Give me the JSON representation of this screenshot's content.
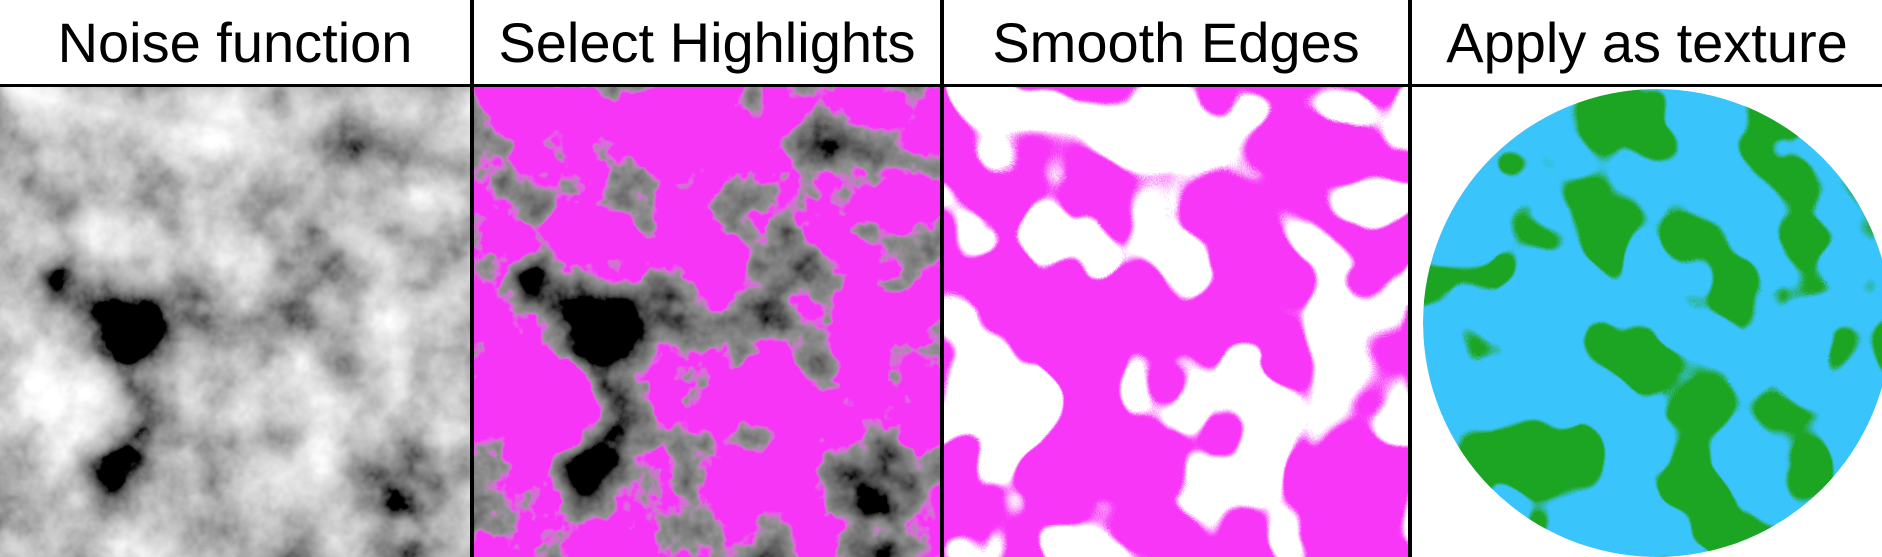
{
  "panels": [
    {
      "title": "Noise function"
    },
    {
      "title": "Select Highlights"
    },
    {
      "title": "Smooth Edges"
    },
    {
      "title": "Apply as texture"
    }
  ],
  "colors": {
    "noise_dark": "#111111",
    "noise_light": "#dcdcdc",
    "highlight": "#f736f7",
    "smooth_blob": "#ffffff",
    "ocean": "#39c4fb",
    "land": "#1fa520",
    "divider": "#000000"
  }
}
